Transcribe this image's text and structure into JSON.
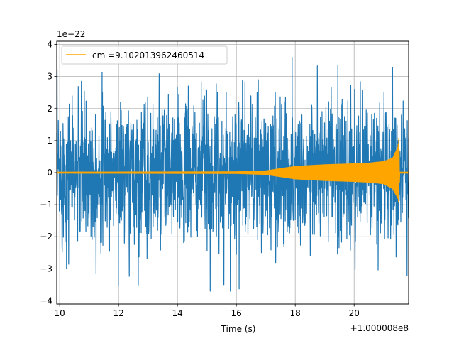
{
  "chart_data": {
    "type": "line",
    "title": "",
    "xlabel": "Time (s)",
    "ylabel": "",
    "xlim": [
      9.9,
      21.85
    ],
    "ylim": [
      -4.1,
      4.1
    ],
    "x_offset_label": "+1.000008e8",
    "y_scale_label": "1e−22",
    "x_ticks": [
      10,
      12,
      14,
      16,
      18,
      20
    ],
    "x_tick_labels": [
      "10",
      "12",
      "14",
      "16",
      "18",
      "20"
    ],
    "y_ticks": [
      -4,
      -3,
      -2,
      -1,
      0,
      1,
      2,
      3,
      4
    ],
    "y_tick_labels": [
      "−4",
      "−3",
      "−2",
      "−1",
      "0",
      "1",
      "2",
      "3",
      "4"
    ],
    "grid": true,
    "legend_position": "top-left",
    "series": [
      {
        "name": "",
        "color": "#1f77b4",
        "x": [
          9.9,
          21.85
        ],
        "envelope_upper": [
          2.7,
          2.7
        ],
        "envelope_lower": [
          -2.7,
          -2.7
        ],
        "peak_max": 3.6,
        "peak_min": -3.7
      },
      {
        "name": "cm =9.102013962460514",
        "color": "#ffa500",
        "x": [
          9.9,
          16.0,
          17.0,
          18.0,
          19.0,
          20.0,
          20.5,
          21.0,
          21.3,
          21.48,
          21.52,
          21.55,
          21.85
        ],
        "envelope_upper": [
          0.02,
          0.03,
          0.06,
          0.2,
          0.25,
          0.28,
          0.3,
          0.35,
          0.45,
          0.8,
          1.15,
          0.02,
          0.02
        ],
        "envelope_lower": [
          -0.02,
          -0.03,
          -0.06,
          -0.2,
          -0.25,
          -0.28,
          -0.3,
          -0.35,
          -0.5,
          -0.8,
          -1.0,
          -0.02,
          -0.02
        ]
      }
    ]
  }
}
